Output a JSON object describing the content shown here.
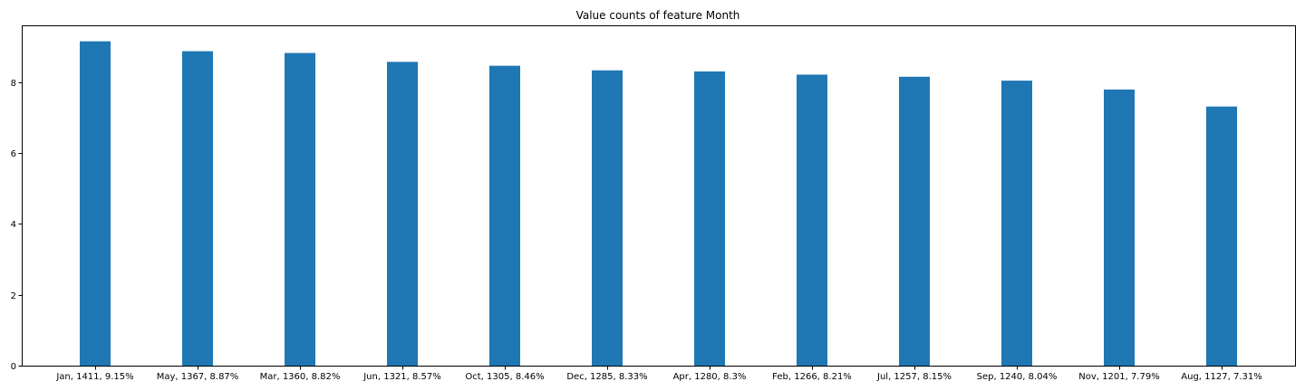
{
  "chart_data": {
    "type": "bar",
    "title": "Value counts of feature Month",
    "xlabel": "",
    "ylabel": "",
    "categories": [
      "Jan, 1411, 9.15%",
      "May, 1367, 8.87%",
      "Mar, 1360, 8.82%",
      "Jun, 1321, 8.57%",
      "Oct, 1305, 8.46%",
      "Dec, 1285, 8.33%",
      "Apr, 1280, 8.3%",
      "Feb, 1266, 8.21%",
      "Jul, 1257, 8.15%",
      "Sep, 1240, 8.04%",
      "Nov, 1201, 7.79%",
      "Aug, 1127, 7.31%"
    ],
    "values": [
      9.15,
      8.87,
      8.82,
      8.57,
      8.46,
      8.33,
      8.3,
      8.21,
      8.15,
      8.04,
      7.79,
      7.31
    ],
    "ylim": [
      0,
      9.6
    ],
    "yticks": [
      0,
      2,
      4,
      6,
      8
    ],
    "bar_color": "#1f77b4",
    "grid": false,
    "legend": false
  }
}
